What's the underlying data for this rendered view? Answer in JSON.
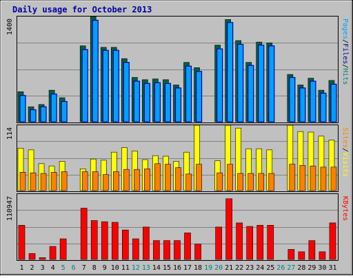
{
  "colors": {
    "background": "#c0c0c0",
    "plot_bg": "#c0c0c0",
    "grid": "#808080",
    "title": "#0000a0",
    "hits_front": "#00a0ff",
    "hits_back": "#006040",
    "pages": "#00a0ff",
    "files": "#0000a0",
    "hits_label": "#008080",
    "visits": "#ffff00",
    "sites": "#ff8000",
    "kbytes": "#ff0000",
    "xlabel_weekday": "#000000",
    "xlabel_weekend": "#008080"
  },
  "chart_data": [
    {
      "type": "bar",
      "title": "Daily usage for October 2013",
      "ylabel_max": "1400",
      "ymax": 1400,
      "series_labels": [
        "Pages",
        "Files",
        "Hits"
      ],
      "separator": "/",
      "categories": [
        "1",
        "2",
        "3",
        "4",
        "5",
        "6",
        "7",
        "8",
        "9",
        "10",
        "11",
        "12",
        "13",
        "14",
        "15",
        "16",
        "17",
        "18",
        "19",
        "20",
        "21",
        "22",
        "23",
        "24",
        "25",
        "26",
        "27",
        "28",
        "29",
        "30",
        "31"
      ],
      "weekend": [
        5,
        6,
        12,
        13,
        19,
        20,
        26,
        27
      ],
      "series": [
        {
          "name": "Hits",
          "values": [
            400,
            200,
            230,
            420,
            320,
            0,
            1010,
            1400,
            990,
            990,
            840,
            590,
            560,
            570,
            560,
            490,
            790,
            720,
            0,
            1020,
            1360,
            1080,
            790,
            1060,
            1050,
            0,
            630,
            490,
            580,
            420,
            550
          ]
        },
        {
          "name": "Files",
          "values": [
            350,
            160,
            200,
            370,
            270,
            0,
            960,
            1350,
            950,
            950,
            790,
            540,
            510,
            520,
            510,
            450,
            740,
            670,
            0,
            970,
            1320,
            1030,
            750,
            1020,
            1010,
            0,
            590,
            450,
            540,
            380,
            500
          ]
        }
      ]
    },
    {
      "type": "bar",
      "ylabel_max": "114",
      "ymax": 114,
      "series_labels": [
        "Sites",
        "Visits"
      ],
      "separator": "/",
      "categories": [
        "1",
        "2",
        "3",
        "4",
        "5",
        "6",
        "7",
        "8",
        "9",
        "10",
        "11",
        "12",
        "13",
        "14",
        "15",
        "16",
        "17",
        "18",
        "19",
        "20",
        "21",
        "22",
        "23",
        "24",
        "25",
        "26",
        "27",
        "28",
        "29",
        "30",
        "31"
      ],
      "series": [
        {
          "name": "Visits",
          "values": [
            74,
            71,
            47,
            43,
            51,
            0,
            38,
            55,
            53,
            67,
            75,
            69,
            54,
            61,
            60,
            51,
            67,
            114,
            0,
            52,
            114,
            109,
            73,
            73,
            71,
            0,
            114,
            103,
            102,
            95,
            88
          ]
        },
        {
          "name": "Sites",
          "values": [
            32,
            31,
            30,
            32,
            33,
            0,
            33,
            33,
            28,
            33,
            37,
            37,
            38,
            47,
            46,
            40,
            29,
            46,
            0,
            31,
            46,
            30,
            30,
            30,
            30,
            0,
            46,
            44,
            43,
            41,
            41
          ]
        }
      ]
    },
    {
      "type": "bar",
      "ylabel_max": "110947",
      "ymax": 110947,
      "series_labels": [
        "KBytes"
      ],
      "categories": [
        "1",
        "2",
        "3",
        "4",
        "5",
        "6",
        "7",
        "8",
        "9",
        "10",
        "11",
        "12",
        "13",
        "14",
        "15",
        "16",
        "17",
        "18",
        "19",
        "20",
        "21",
        "22",
        "23",
        "24",
        "25",
        "26",
        "27",
        "28",
        "29",
        "30",
        "31"
      ],
      "series": [
        {
          "name": "KBytes",
          "values": [
            58000,
            10000,
            3000,
            22000,
            35000,
            0,
            87000,
            66000,
            64000,
            63000,
            50000,
            35000,
            55000,
            32000,
            32000,
            32000,
            45000,
            26000,
            0,
            55000,
            103000,
            62000,
            56000,
            58000,
            58000,
            0,
            17000,
            13000,
            32000,
            13000,
            62000
          ]
        }
      ]
    }
  ]
}
